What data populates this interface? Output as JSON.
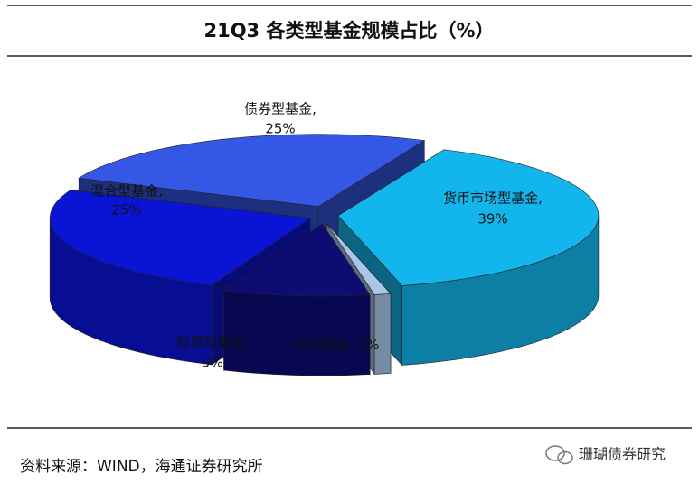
{
  "chart_data": {
    "type": "pie3d",
    "title": "21Q3 各类型基金规模占比（%）",
    "categories": [
      "货币市场型基金,",
      "QDII基金,",
      "股票型基金,",
      "混合型基金,",
      "债券型基金,"
    ],
    "values": [
      39,
      1,
      9,
      25,
      25
    ],
    "value_labels": [
      "39%",
      "1%",
      "9%",
      "25%",
      "25%"
    ],
    "colors": [
      "#13b6ec",
      "#a9c6ea",
      "#0c0c72",
      "#0a14d4",
      "#3457e6"
    ],
    "source": "资料来源：WIND，海通证券研究所",
    "watermark": "珊瑚债券研究"
  }
}
